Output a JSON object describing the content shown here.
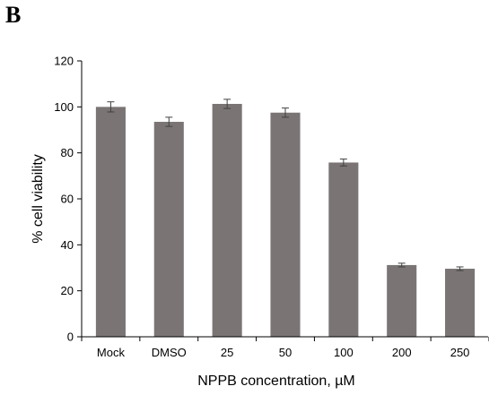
{
  "panel_label": "B",
  "chart_data": {
    "type": "bar",
    "categories": [
      "Mock",
      "DMSO",
      "25",
      "50",
      "100",
      "200",
      "250"
    ],
    "values": [
      100,
      93.5,
      101.3,
      97.5,
      75.8,
      31.2,
      29.6
    ],
    "errors": [
      2.2,
      2.0,
      2.0,
      2.0,
      1.5,
      0.8,
      0.8
    ],
    "title": "",
    "xlabel": "NPPB concentration, µM",
    "ylabel": "% cell viability",
    "ylim": [
      0,
      120
    ],
    "yticks": [
      0,
      20,
      40,
      60,
      80,
      100,
      120
    ],
    "grid": false,
    "legend": "none",
    "bar_color": "#7a7574",
    "error_color": "#404040"
  }
}
